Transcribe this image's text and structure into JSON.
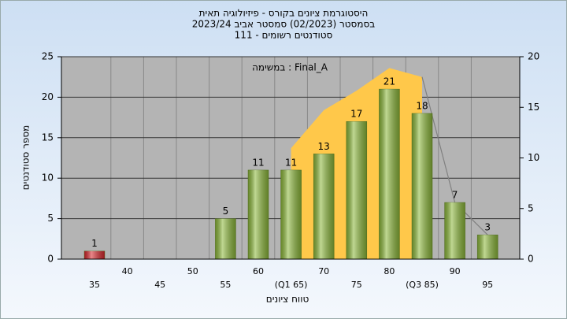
{
  "chart_data": {
    "type": "bar",
    "title_lines": [
      "היסטוגרמת ציונים בקורס - פיזיולוגיה תאית",
      "בסמסטר  (02/2023)  סמסטר אביב 2023/24",
      "סטודנטים רשומים - 111"
    ],
    "annotation": "במשימה : Final_A",
    "x_label": "טווח ציונים",
    "y_label": "מספר סטודנטים",
    "categories": [
      "35",
      "40",
      "45",
      "50",
      "55",
      "60",
      "(Q1 65)",
      "70",
      "75",
      "80",
      "(Q3 85)",
      "90",
      "95"
    ],
    "values": [
      1,
      0,
      0,
      0,
      5,
      11,
      11,
      13,
      17,
      21,
      18,
      7,
      3
    ],
    "colors": [
      "#d9262b",
      "#8cb83a",
      "#8cb83a",
      "#8cb83a",
      "#8cb83a",
      "#8cb83a",
      "#8cb83a",
      "#8cb83a",
      "#8cb83a",
      "#8cb83a",
      "#8cb83a",
      "#8cb83a",
      "#8cb83a"
    ],
    "series": [
      {
        "kind": "area",
        "color": "#ffc84a",
        "values": [
          null,
          null,
          null,
          null,
          null,
          null,
          13.7,
          18.4,
          20.8,
          23.6,
          22.5,
          null,
          null
        ]
      },
      {
        "kind": "line",
        "color": "#808080",
        "values": [
          null,
          null,
          null,
          null,
          null,
          null,
          null,
          null,
          null,
          null,
          22.5,
          7,
          3
        ]
      }
    ],
    "ylim": [
      0,
      25
    ],
    "yticks": [
      0,
      5,
      10,
      15,
      20,
      25
    ],
    "y2lim": [
      0,
      20
    ],
    "y2ticks": [
      0,
      5,
      10,
      15,
      20
    ],
    "grid": true
  }
}
